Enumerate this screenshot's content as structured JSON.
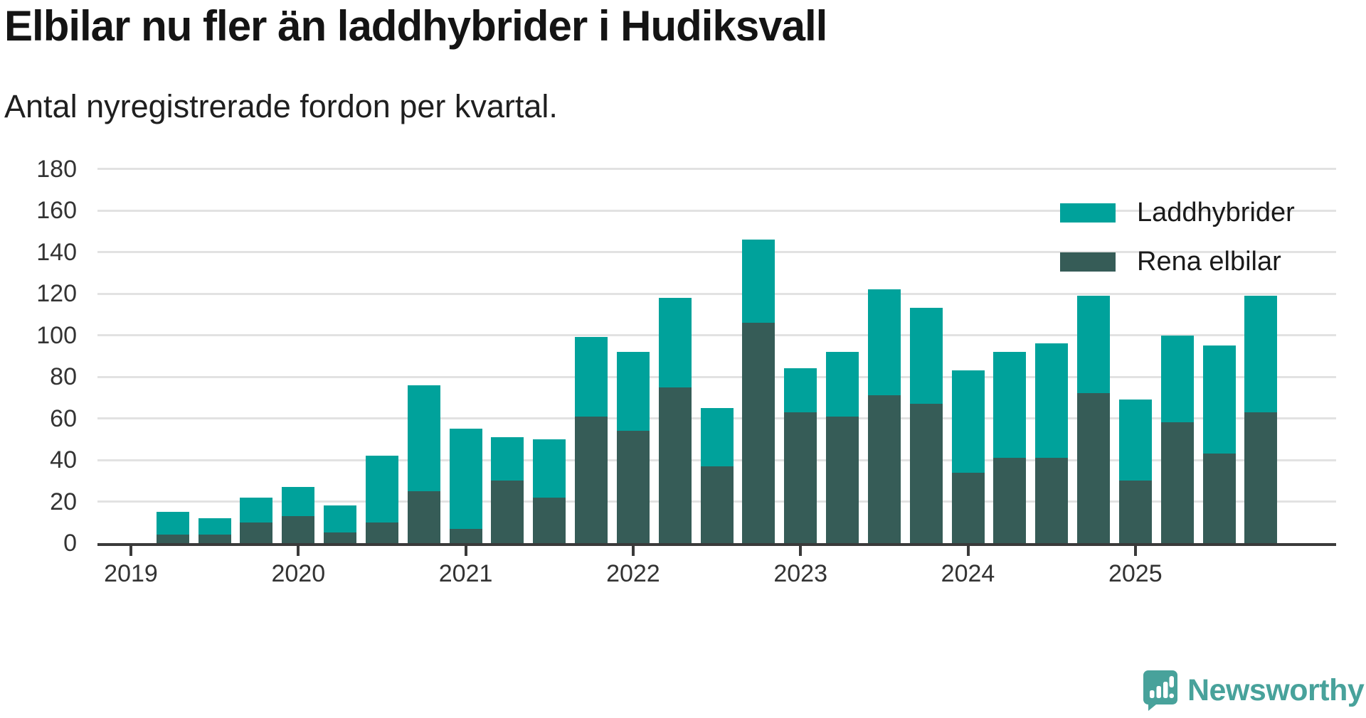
{
  "header": {
    "title": "Elbilar nu fler än laddhybrider i Hudiksvall",
    "subtitle": "Antal nyregistrerade fordon per kvartal."
  },
  "chart_data": {
    "type": "bar",
    "stacked": true,
    "title": "Elbilar nu fler än laddhybrider i Hudiksvall",
    "subtitle": "Antal nyregistrerade fordon per kvartal.",
    "xlabel": "",
    "ylabel": "",
    "ylim": [
      0,
      180
    ],
    "grid": true,
    "legend_position": "top-right",
    "yticks": [
      0,
      20,
      40,
      60,
      80,
      100,
      120,
      140,
      160,
      180
    ],
    "xticks": [
      "2019",
      "2020",
      "2021",
      "2022",
      "2023",
      "2024",
      "2025"
    ],
    "categories": [
      "2019 Q2",
      "2019 Q3",
      "2019 Q4",
      "2020 Q1",
      "2020 Q2",
      "2020 Q3",
      "2020 Q4",
      "2021 Q1",
      "2021 Q2",
      "2021 Q3",
      "2021 Q4",
      "2022 Q1",
      "2022 Q2",
      "2022 Q3",
      "2022 Q4",
      "2023 Q1",
      "2023 Q2",
      "2023 Q3",
      "2023 Q4",
      "2024 Q1",
      "2024 Q2",
      "2024 Q3",
      "2024 Q4",
      "2025 Q1",
      "2025 Q2",
      "2025 Q3",
      "2025 Q4"
    ],
    "series": [
      {
        "name": "Laddhybrider",
        "color": "#00a29b",
        "values": [
          11,
          8,
          12,
          14,
          13,
          32,
          51,
          48,
          21,
          28,
          38,
          38,
          43,
          28,
          40,
          21,
          31,
          51,
          46,
          49,
          51,
          55,
          47,
          39,
          42,
          52,
          56
        ]
      },
      {
        "name": "Rena elbilar",
        "color": "#365c57",
        "values": [
          4,
          4,
          10,
          13,
          5,
          10,
          25,
          7,
          30,
          22,
          61,
          54,
          75,
          37,
          106,
          63,
          61,
          71,
          67,
          34,
          41,
          41,
          72,
          30,
          58,
          43,
          63
        ]
      }
    ]
  },
  "branding": {
    "logo_text": "Newsworthy",
    "logo_color": "#48a29b"
  },
  "colors": {
    "laddhybrider": "#00a29b",
    "rena_elbilar": "#365c57",
    "gridline": "#e2e2e2",
    "axis_line": "#3a3a3a",
    "axis_text": "#333333",
    "text": "#141414"
  }
}
